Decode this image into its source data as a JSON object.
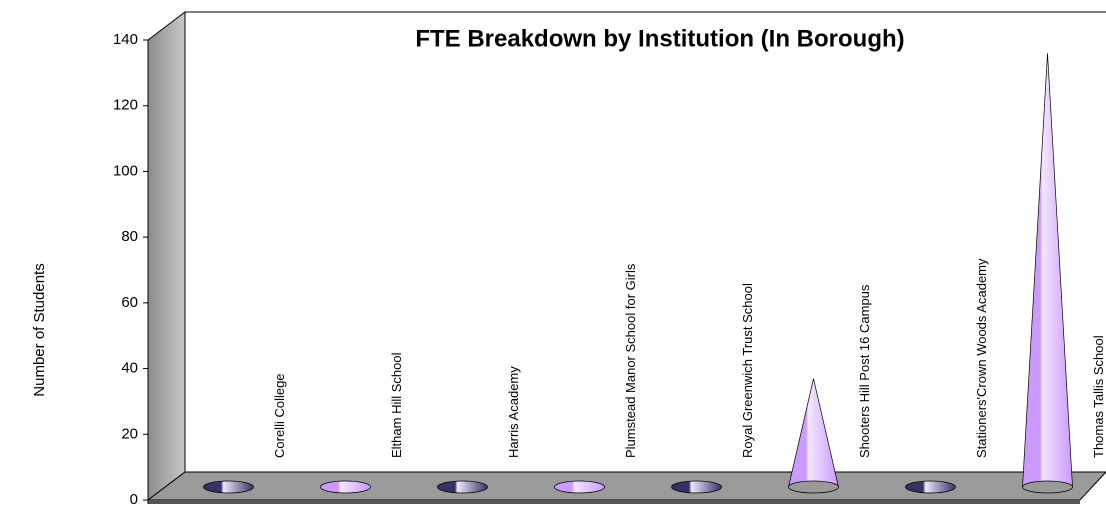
{
  "chart_data": {
    "type": "cone",
    "title": "FTE Breakdown by Institution (In Borough)",
    "y_label": "Number of Students",
    "categories": [
      "Corelli College",
      "Eltham Hill School",
      "Harris Academy",
      "Plumstead Manor School for Girls",
      "Royal Greenwich Trust School",
      "Shooters Hill Post 16 Campus",
      "Stationers'Crown Woods Academy",
      "Thomas Tallis School"
    ],
    "values": [
      0,
      0,
      0,
      0,
      0,
      33,
      0,
      132
    ],
    "colors": [
      "#333366",
      "#cc99ff",
      "#333366",
      "#cc99ff",
      "#333366",
      "#cc99ff",
      "#333366",
      "#cc99ff"
    ],
    "ylim": [
      0,
      140
    ],
    "yticks": [
      0,
      20,
      40,
      60,
      80,
      100,
      120,
      140
    ]
  }
}
